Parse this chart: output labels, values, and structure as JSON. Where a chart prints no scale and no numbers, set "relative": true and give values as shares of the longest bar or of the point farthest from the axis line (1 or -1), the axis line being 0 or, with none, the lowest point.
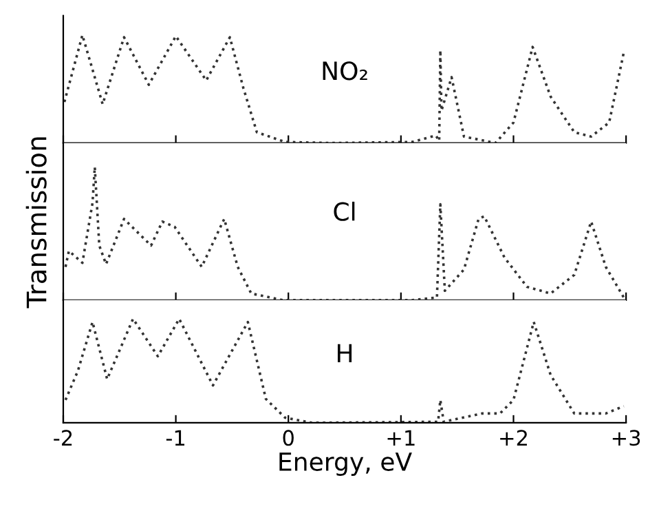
{
  "chart_data": [
    {
      "type": "line",
      "relative": true,
      "tick_labels": false,
      "annotations": [
        "NO₂"
      ],
      "xlim": [
        -2,
        3
      ],
      "xticks": [
        -2,
        -1,
        0,
        1,
        2,
        3
      ],
      "line_style": "dotted",
      "marker": "none",
      "x": [
        -1.99,
        -1.83,
        -1.65,
        -1.46,
        -1.24,
        -1.0,
        -0.73,
        -0.52,
        -0.4,
        -0.28,
        -0.03,
        0.37,
        1.1,
        1.31,
        1.34,
        1.35,
        1.36,
        1.45,
        1.56,
        1.84,
        2.0,
        2.17,
        2.33,
        2.54,
        2.69,
        2.85,
        2.98
      ],
      "series": [
        {
          "color": "#333333",
          "values": [
            0.38,
            1.0,
            0.36,
            0.98,
            0.54,
            0.99,
            0.58,
            0.98,
            0.51,
            0.1,
            0.01,
            0,
            0.01,
            0.07,
            0.02,
            0.86,
            0.3,
            0.61,
            0.06,
            0,
            0.19,
            0.89,
            0.43,
            0.1,
            0.06,
            0.19,
            0.84
          ]
        }
      ]
    },
    {
      "type": "line",
      "relative": true,
      "tick_labels": false,
      "ylabel": "Transmission",
      "annotations": [
        "Cl"
      ],
      "xlim": [
        -2,
        3
      ],
      "xticks": [
        -2,
        -1,
        0,
        1,
        2,
        3
      ],
      "line_style": "dotted",
      "marker": "none",
      "x": [
        -1.98,
        -1.95,
        -1.83,
        -1.74,
        -1.72,
        -1.68,
        -1.62,
        -1.46,
        -1.22,
        -1.12,
        -1.01,
        -0.77,
        -0.57,
        -0.45,
        -0.33,
        -0.05,
        1.1,
        1.32,
        1.35,
        1.39,
        1.56,
        1.69,
        1.74,
        1.92,
        2.12,
        2.33,
        2.54,
        2.69,
        2.82,
        2.98
      ],
      "series": [
        {
          "color": "#333333",
          "values": [
            0.25,
            0.37,
            0.28,
            0.73,
            1.0,
            0.41,
            0.27,
            0.61,
            0.41,
            0.59,
            0.55,
            0.25,
            0.61,
            0.25,
            0.05,
            0,
            0,
            0.02,
            0.72,
            0.07,
            0.23,
            0.61,
            0.63,
            0.32,
            0.1,
            0.05,
            0.19,
            0.59,
            0.25,
            0.02
          ]
        }
      ]
    },
    {
      "type": "line",
      "relative": true,
      "tick_labels": "x",
      "xlabel": "Energy, eV",
      "annotations": [
        "H"
      ],
      "xlim": [
        -2,
        3
      ],
      "xticks": [
        -2,
        -1,
        0,
        {
          "value": 1,
          "label": "+1"
        },
        {
          "value": 2,
          "label": "+2"
        },
        {
          "value": 3,
          "label": "+3"
        }
      ],
      "line_style": "dotted",
      "marker": "none",
      "x": [
        -1.98,
        -1.87,
        -1.74,
        -1.61,
        -1.38,
        -1.16,
        -0.97,
        -0.67,
        -0.36,
        -0.2,
        -0.03,
        0.21,
        1.33,
        1.35,
        1.38,
        1.72,
        1.88,
        2.0,
        2.18,
        2.33,
        2.54,
        2.82,
        2.98
      ],
      "series": [
        {
          "color": "#333333",
          "values": [
            0.22,
            0.5,
            0.97,
            0.42,
            1.0,
            0.64,
            1.0,
            0.36,
            0.97,
            0.23,
            0.05,
            0,
            0.01,
            0.22,
            0.01,
            0.09,
            0.09,
            0.22,
            0.97,
            0.46,
            0.09,
            0.09,
            0.16
          ]
        }
      ]
    }
  ]
}
